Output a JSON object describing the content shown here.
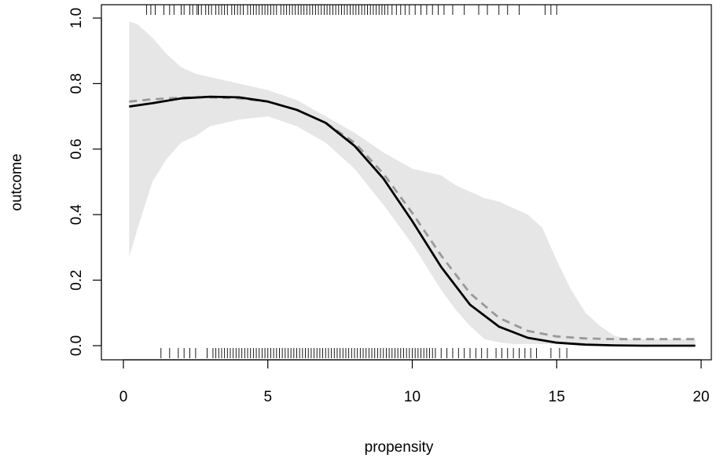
{
  "chart_data": {
    "type": "line",
    "title": "",
    "xlabel": "propensity",
    "ylabel": "outcome",
    "xlim": [
      0,
      20
    ],
    "ylim": [
      0,
      1
    ],
    "x_ticks": [
      0,
      5,
      10,
      15,
      20
    ],
    "x_tick_labels": [
      "0",
      "5",
      "10",
      "15",
      "20"
    ],
    "y_ticks": [
      0.0,
      0.2,
      0.4,
      0.6,
      0.8,
      1.0
    ],
    "y_tick_labels": [
      "0.0",
      "0.2",
      "0.4",
      "0.6",
      "0.8",
      "1.0"
    ],
    "grid": false,
    "colors": {
      "band": "#e6e6e6",
      "solid": "#000000",
      "dashed": "#999999"
    },
    "confidence_band": {
      "x": [
        0.2,
        0.5,
        1.0,
        1.5,
        2.0,
        2.5,
        3.0,
        4.0,
        5.0,
        6.0,
        7.0,
        8.0,
        9.0,
        10.0,
        10.5,
        11.0,
        11.5,
        12.0,
        12.5,
        13.0,
        13.5,
        14.0,
        14.5,
        15.0,
        15.5,
        16.0,
        16.5,
        17.0,
        17.5,
        18.0,
        19.8
      ],
      "lower": [
        0.27,
        0.36,
        0.5,
        0.57,
        0.62,
        0.64,
        0.67,
        0.69,
        0.7,
        0.67,
        0.62,
        0.54,
        0.43,
        0.31,
        0.24,
        0.17,
        0.11,
        0.06,
        0.02,
        0.01,
        0.005,
        0.005,
        0.005,
        0.005,
        0.005,
        0.005,
        0.005,
        0.005,
        0.005,
        0.005,
        0.005
      ],
      "upper": [
        0.99,
        0.98,
        0.94,
        0.89,
        0.85,
        0.83,
        0.82,
        0.8,
        0.78,
        0.75,
        0.7,
        0.65,
        0.59,
        0.54,
        0.53,
        0.52,
        0.49,
        0.47,
        0.45,
        0.44,
        0.42,
        0.4,
        0.36,
        0.26,
        0.17,
        0.1,
        0.06,
        0.03,
        0.02,
        0.02,
        0.02
      ]
    },
    "series": [
      {
        "style": "solid",
        "x": [
          0.2,
          1,
          2,
          3,
          4,
          5,
          6,
          7,
          8,
          9,
          10,
          11,
          12,
          13,
          14,
          15,
          16,
          17,
          18,
          19,
          19.8
        ],
        "values": [
          0.73,
          0.74,
          0.755,
          0.76,
          0.758,
          0.745,
          0.72,
          0.68,
          0.61,
          0.51,
          0.38,
          0.24,
          0.125,
          0.058,
          0.024,
          0.009,
          0.003,
          0.001,
          0.0,
          0.0,
          0.0
        ]
      },
      {
        "style": "dashed",
        "x": [
          0.2,
          1,
          2,
          3,
          4,
          5,
          6,
          7,
          8,
          9,
          10,
          11,
          12,
          13,
          14,
          15,
          16,
          17,
          18,
          19,
          19.8
        ],
        "values": [
          0.745,
          0.752,
          0.757,
          0.758,
          0.755,
          0.745,
          0.72,
          0.68,
          0.62,
          0.525,
          0.405,
          0.275,
          0.16,
          0.085,
          0.045,
          0.028,
          0.022,
          0.02,
          0.02,
          0.02,
          0.02
        ]
      }
    ],
    "rug_top": [
      0.8,
      0.95,
      1.1,
      1.4,
      1.6,
      1.75,
      2.0,
      2.1,
      2.3,
      2.4,
      2.55,
      2.6,
      2.7,
      2.85,
      2.95,
      3.05,
      3.2,
      3.3,
      3.4,
      3.5,
      3.6,
      3.75,
      3.85,
      3.95,
      4.05,
      4.15,
      4.3,
      4.4,
      4.5,
      4.6,
      4.7,
      4.8,
      4.9,
      5.0,
      5.1,
      5.2,
      5.3,
      5.45,
      5.55,
      5.65,
      5.75,
      5.85,
      5.95,
      6.05,
      6.15,
      6.25,
      6.35,
      6.45,
      6.55,
      6.65,
      6.75,
      6.85,
      6.95,
      7.05,
      7.15,
      7.25,
      7.35,
      7.45,
      7.55,
      7.65,
      7.75,
      7.85,
      7.95,
      8.05,
      8.15,
      8.25,
      8.35,
      8.45,
      8.55,
      8.65,
      8.75,
      8.85,
      8.95,
      9.05,
      9.15,
      9.3,
      9.45,
      9.6,
      9.75,
      9.9,
      10.1,
      10.3,
      10.5,
      10.7,
      10.9,
      11.1,
      11.4,
      11.8,
      12.3,
      12.6,
      13.0,
      13.3,
      13.7,
      14.6,
      14.8,
      15.0
    ],
    "rug_bottom": [
      1.3,
      1.6,
      1.9,
      2.1,
      2.3,
      2.5,
      2.9,
      3.1,
      3.2,
      3.3,
      3.4,
      3.5,
      3.6,
      3.7,
      3.8,
      3.9,
      4.0,
      4.1,
      4.2,
      4.3,
      4.4,
      4.5,
      4.6,
      4.7,
      4.8,
      4.9,
      5.0,
      5.1,
      5.2,
      5.3,
      5.4,
      5.5,
      5.6,
      5.7,
      5.8,
      5.9,
      6.0,
      6.1,
      6.2,
      6.3,
      6.4,
      6.5,
      6.6,
      6.7,
      6.8,
      6.9,
      7.0,
      7.1,
      7.2,
      7.3,
      7.4,
      7.5,
      7.6,
      7.7,
      7.8,
      7.9,
      8.0,
      8.1,
      8.2,
      8.3,
      8.4,
      8.5,
      8.6,
      8.7,
      8.8,
      8.9,
      9.0,
      9.1,
      9.2,
      9.3,
      9.4,
      9.5,
      9.6,
      9.7,
      9.8,
      9.9,
      10.0,
      10.1,
      10.2,
      10.3,
      10.4,
      10.5,
      10.6,
      10.7,
      10.8,
      11.0,
      11.2,
      11.4,
      11.6,
      11.8,
      12.0,
      12.2,
      12.4,
      12.6,
      12.9,
      13.1,
      13.3,
      13.5,
      13.7,
      13.9,
      14.1,
      14.3,
      14.8,
      15.1,
      15.35
    ]
  }
}
